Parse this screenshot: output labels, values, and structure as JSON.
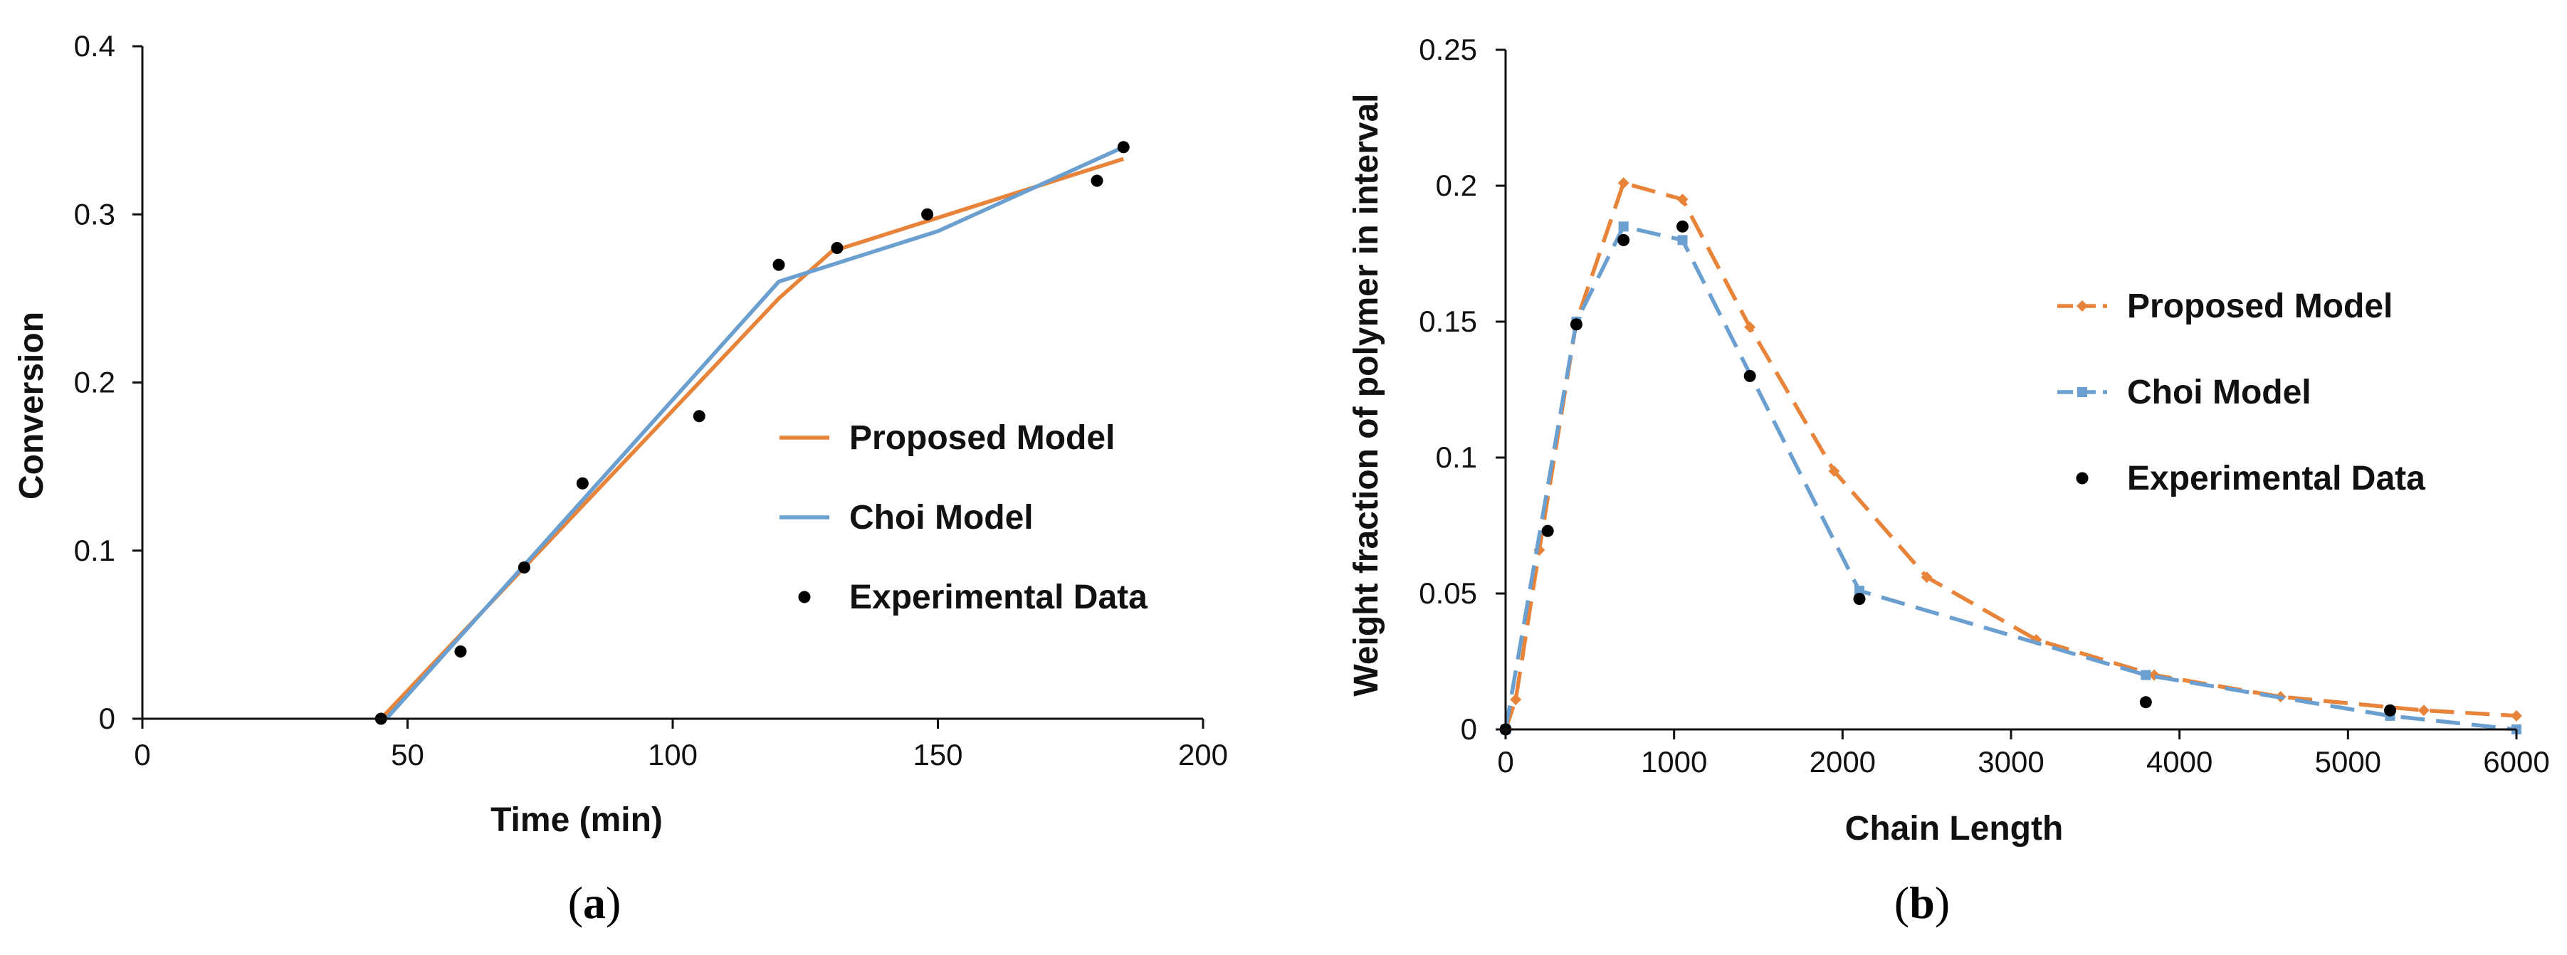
{
  "colors": {
    "proposed": "#E8833A",
    "choi": "#6A9FCF",
    "experimental": "#000000"
  },
  "chart_data": [
    {
      "panel": "a",
      "type": "line",
      "xlabel": "Time (min)",
      "ylabel": "Conversion",
      "xlim": [
        0,
        200
      ],
      "ylim": [
        0,
        0.4
      ],
      "xticks": [
        0,
        50,
        100,
        150,
        200
      ],
      "yticks": [
        0,
        0.1,
        0.2,
        0.3,
        0.4
      ],
      "xtick_labels": [
        "0",
        "50",
        "100",
        "150",
        "200"
      ],
      "ytick_labels": [
        "0",
        "0.1",
        "0.2",
        "0.3",
        "0.4"
      ],
      "legend_position": "center-right",
      "series": [
        {
          "name": "Proposed Model",
          "style": "solid-line",
          "color": "#E8833A",
          "x": [
            45,
            60,
            75,
            90,
            105,
            120,
            130,
            150,
            170,
            185
          ],
          "y": [
            0,
            0.05,
            0.1,
            0.15,
            0.2,
            0.25,
            0.278,
            0.298,
            0.318,
            0.333
          ]
        },
        {
          "name": "Choi Model",
          "style": "solid-line",
          "color": "#6A9FCF",
          "x": [
            46,
            120,
            150,
            185
          ],
          "y": [
            0,
            0.26,
            0.29,
            0.34
          ]
        },
        {
          "name": "Experimental Data",
          "style": "points",
          "color": "#000000",
          "x": [
            45,
            60,
            72,
            83,
            105,
            120,
            131,
            148,
            180,
            185
          ],
          "y": [
            0,
            0.04,
            0.09,
            0.14,
            0.18,
            0.27,
            0.28,
            0.3,
            0.32,
            0.34
          ]
        }
      ]
    },
    {
      "panel": "b",
      "type": "line",
      "xlabel": "Chain Length",
      "ylabel": "Weight fraction of polymer in interval",
      "xlim": [
        0,
        6000
      ],
      "ylim": [
        0,
        0.25
      ],
      "xticks": [
        0,
        1000,
        2000,
        3000,
        4000,
        5000,
        6000
      ],
      "yticks": [
        0,
        0.05,
        0.1,
        0.15,
        0.2,
        0.25
      ],
      "xtick_labels": [
        "0",
        "1000",
        "2000",
        "3000",
        "4000",
        "5000",
        "6000"
      ],
      "ytick_labels": [
        "0",
        "0.05",
        "0.1",
        "0.15",
        "0.2",
        "0.25"
      ],
      "legend_position": "center-right",
      "series": [
        {
          "name": "Proposed Model",
          "style": "dashed-line-diamond",
          "color": "#E8833A",
          "x": [
            0,
            60,
            200,
            420,
            700,
            1050,
            1450,
            1950,
            2500,
            3150,
            3850,
            4600,
            5450,
            6000
          ],
          "y": [
            0,
            0.011,
            0.066,
            0.15,
            0.201,
            0.195,
            0.148,
            0.095,
            0.056,
            0.033,
            0.02,
            0.012,
            0.007,
            0.005
          ]
        },
        {
          "name": "Choi Model",
          "style": "dashed-line-square",
          "color": "#6A9FCF",
          "x": [
            0,
            420,
            700,
            1050,
            2100,
            3800,
            5250,
            6000
          ],
          "y": [
            0,
            0.15,
            0.185,
            0.18,
            0.051,
            0.02,
            0.005,
            0.0
          ]
        },
        {
          "name": "Experimental Data",
          "style": "points",
          "color": "#000000",
          "x": [
            0,
            250,
            420,
            700,
            1050,
            1450,
            2100,
            3800,
            5250
          ],
          "y": [
            0,
            0.073,
            0.149,
            0.18,
            0.185,
            0.13,
            0.048,
            0.01,
            0.007
          ]
        }
      ]
    }
  ],
  "captions": [
    {
      "open": "(",
      "letter": "a",
      "close": ")"
    },
    {
      "open": "(",
      "letter": "b",
      "close": ")"
    }
  ]
}
